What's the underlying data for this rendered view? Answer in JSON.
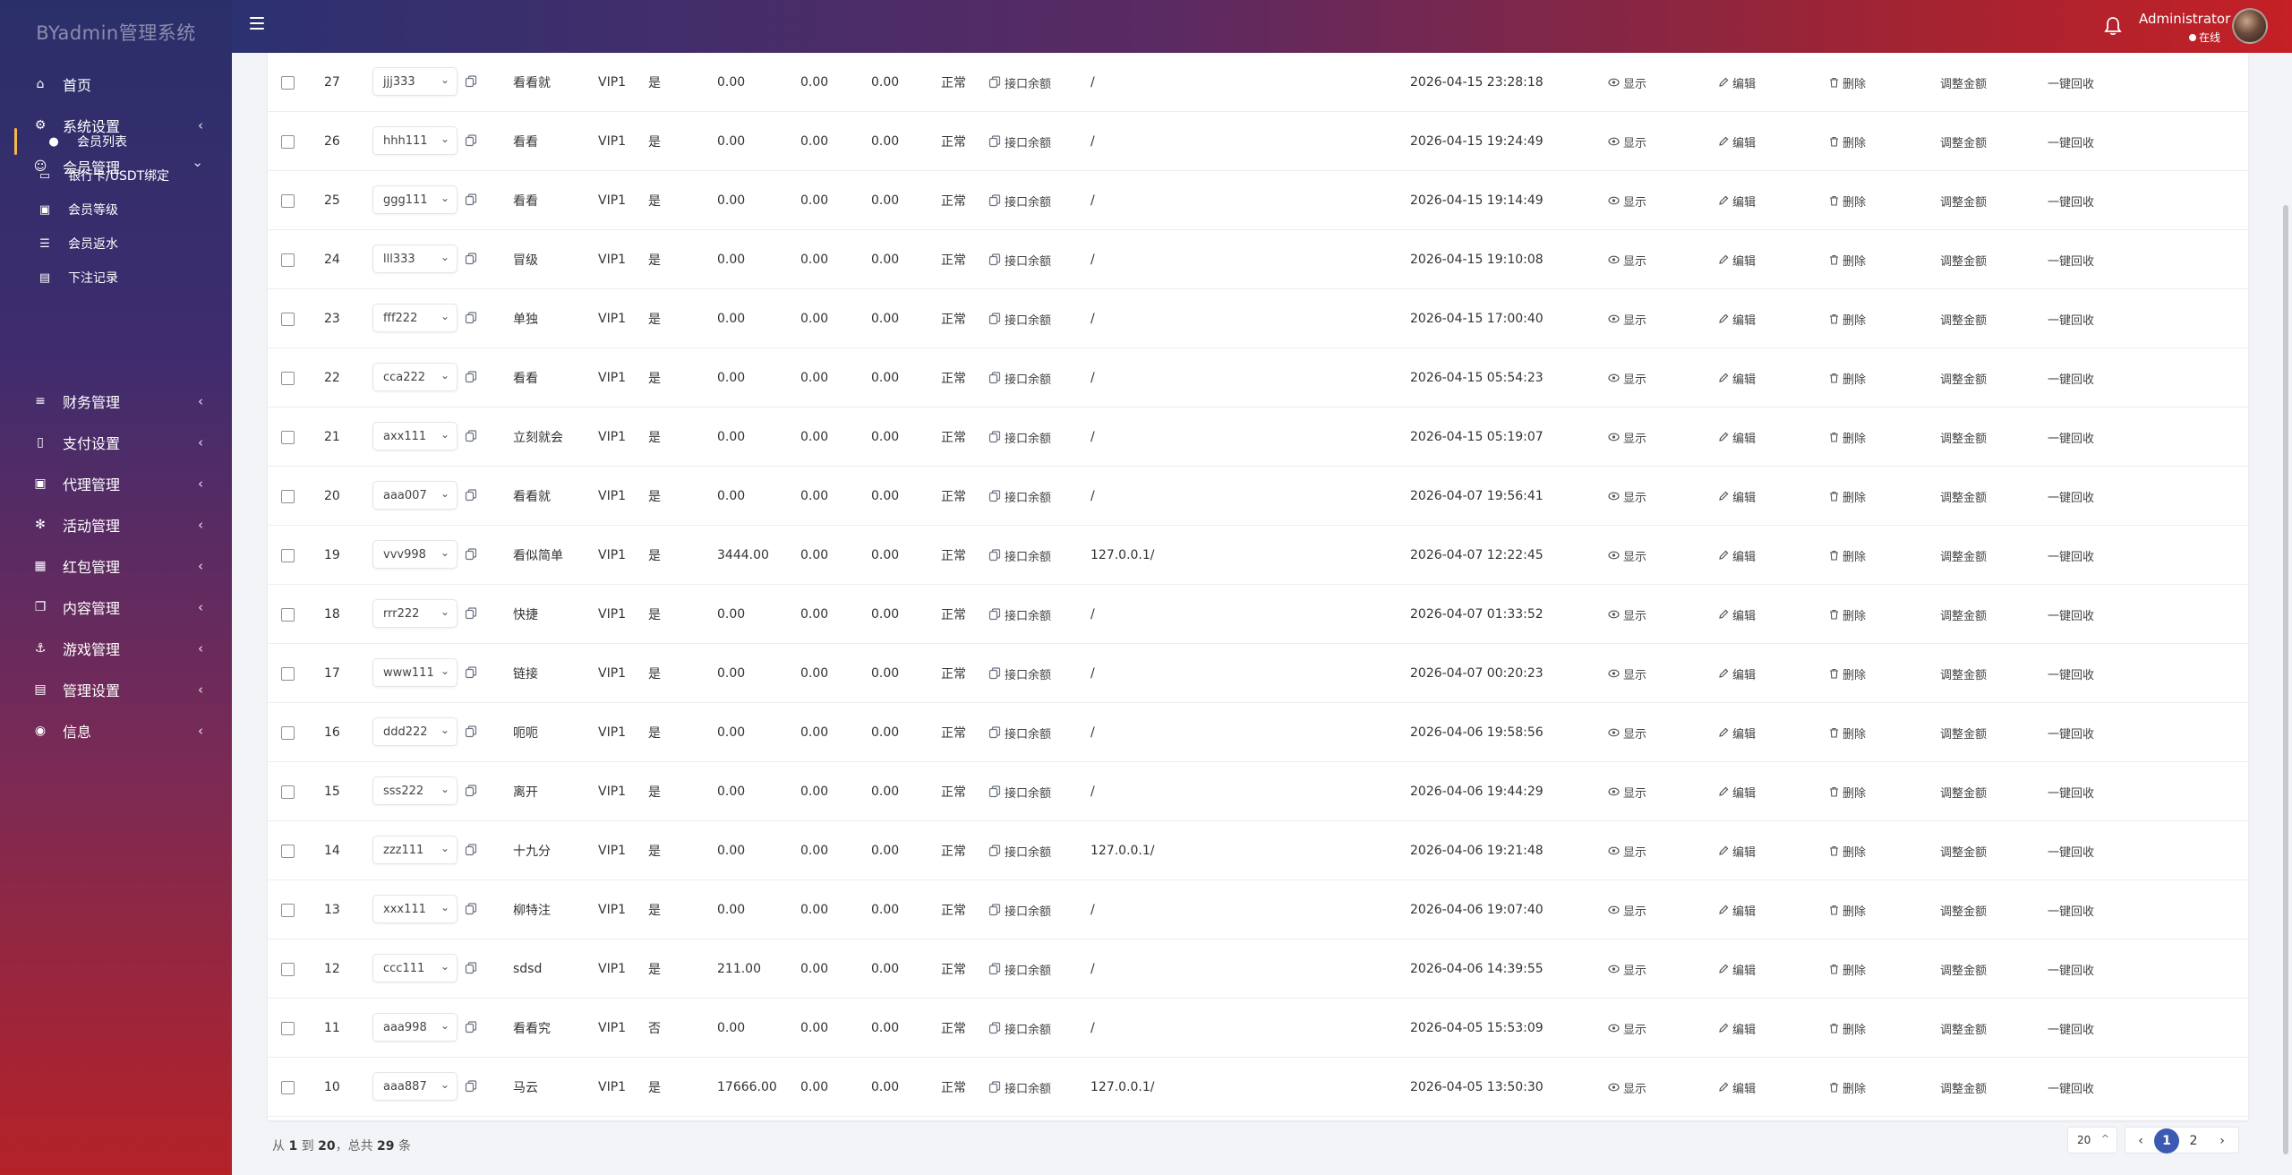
{
  "app": {
    "brand": "BYadmin管理系统"
  },
  "header": {
    "user_name": "Administrator",
    "user_status": "在线"
  },
  "sidebar": {
    "items": [
      {
        "label": "首页",
        "icon": "home-icon",
        "has_arrow": false
      },
      {
        "label": "系统设置",
        "icon": "settings-icon",
        "has_arrow": true
      },
      {
        "label": "会员管理",
        "icon": "user-icon",
        "has_arrow": true,
        "expanded": true
      },
      {
        "label": "财务管理",
        "icon": "database-icon",
        "has_arrow": true
      },
      {
        "label": "支付设置",
        "icon": "bookmark-icon",
        "has_arrow": true
      },
      {
        "label": "代理管理",
        "icon": "agent-icon",
        "has_arrow": true
      },
      {
        "label": "活动管理",
        "icon": "activity-icon",
        "has_arrow": true
      },
      {
        "label": "红包管理",
        "icon": "redpacket-icon",
        "has_arrow": true
      },
      {
        "label": "内容管理",
        "icon": "content-icon",
        "has_arrow": true
      },
      {
        "label": "游戏管理",
        "icon": "anchor-icon",
        "has_arrow": true
      },
      {
        "label": "管理设置",
        "icon": "id-card-icon",
        "has_arrow": true
      },
      {
        "label": "信息",
        "icon": "chat-icon",
        "has_arrow": true
      }
    ],
    "sub_items": [
      {
        "label": "会员列表",
        "icon": "member-icon",
        "active": true
      },
      {
        "label": "银行卡/USDT绑定",
        "icon": "card-icon",
        "active": false
      },
      {
        "label": "会员等级",
        "icon": "level-icon",
        "active": false
      },
      {
        "label": "会员返水",
        "icon": "list-icon",
        "active": false
      },
      {
        "label": "下注记录",
        "icon": "record-icon",
        "active": false
      }
    ]
  },
  "table": {
    "actions": {
      "show": "显示",
      "edit": "编辑",
      "delete": "删除",
      "adjust": "调整金额",
      "recall": "一键回收",
      "balance": "接口余额"
    },
    "rows": [
      {
        "id": "27",
        "username": "jjj333",
        "nickname": "看看就",
        "level": "VIP1",
        "flag": "是",
        "balance": "0.00",
        "c1": "0.00",
        "c2": "0.00",
        "status": "正常",
        "ip": "/",
        "time": "2026-04-15 23:28:18"
      },
      {
        "id": "26",
        "username": "hhh111",
        "nickname": "看看",
        "level": "VIP1",
        "flag": "是",
        "balance": "0.00",
        "c1": "0.00",
        "c2": "0.00",
        "status": "正常",
        "ip": "/",
        "time": "2026-04-15 19:24:49"
      },
      {
        "id": "25",
        "username": "ggg111",
        "nickname": "看看",
        "level": "VIP1",
        "flag": "是",
        "balance": "0.00",
        "c1": "0.00",
        "c2": "0.00",
        "status": "正常",
        "ip": "/",
        "time": "2026-04-15 19:14:49"
      },
      {
        "id": "24",
        "username": "lll333",
        "nickname": "冒级",
        "level": "VIP1",
        "flag": "是",
        "balance": "0.00",
        "c1": "0.00",
        "c2": "0.00",
        "status": "正常",
        "ip": "/",
        "time": "2026-04-15 19:10:08"
      },
      {
        "id": "23",
        "username": "fff222",
        "nickname": "单独",
        "level": "VIP1",
        "flag": "是",
        "balance": "0.00",
        "c1": "0.00",
        "c2": "0.00",
        "status": "正常",
        "ip": "/",
        "time": "2026-04-15 17:00:40"
      },
      {
        "id": "22",
        "username": "cca222",
        "nickname": "看看",
        "level": "VIP1",
        "flag": "是",
        "balance": "0.00",
        "c1": "0.00",
        "c2": "0.00",
        "status": "正常",
        "ip": "/",
        "time": "2026-04-15 05:54:23"
      },
      {
        "id": "21",
        "username": "axx111",
        "nickname": "立刻就会",
        "level": "VIP1",
        "flag": "是",
        "balance": "0.00",
        "c1": "0.00",
        "c2": "0.00",
        "status": "正常",
        "ip": "/",
        "time": "2026-04-15 05:19:07"
      },
      {
        "id": "20",
        "username": "aaa007",
        "nickname": "看看就",
        "level": "VIP1",
        "flag": "是",
        "balance": "0.00",
        "c1": "0.00",
        "c2": "0.00",
        "status": "正常",
        "ip": "/",
        "time": "2026-04-07 19:56:41"
      },
      {
        "id": "19",
        "username": "vvv998",
        "nickname": "看似简单",
        "level": "VIP1",
        "flag": "是",
        "balance": "3444.00",
        "c1": "0.00",
        "c2": "0.00",
        "status": "正常",
        "ip": "127.0.0.1/",
        "time": "2026-04-07 12:22:45"
      },
      {
        "id": "18",
        "username": "rrr222",
        "nickname": "快捷",
        "level": "VIP1",
        "flag": "是",
        "balance": "0.00",
        "c1": "0.00",
        "c2": "0.00",
        "status": "正常",
        "ip": "/",
        "time": "2026-04-07 01:33:52"
      },
      {
        "id": "17",
        "username": "www111",
        "nickname": "链接",
        "level": "VIP1",
        "flag": "是",
        "balance": "0.00",
        "c1": "0.00",
        "c2": "0.00",
        "status": "正常",
        "ip": "/",
        "time": "2026-04-07 00:20:23"
      },
      {
        "id": "16",
        "username": "ddd222",
        "nickname": "呃呃",
        "level": "VIP1",
        "flag": "是",
        "balance": "0.00",
        "c1": "0.00",
        "c2": "0.00",
        "status": "正常",
        "ip": "/",
        "time": "2026-04-06 19:58:56"
      },
      {
        "id": "15",
        "username": "sss222",
        "nickname": "离开",
        "level": "VIP1",
        "flag": "是",
        "balance": "0.00",
        "c1": "0.00",
        "c2": "0.00",
        "status": "正常",
        "ip": "/",
        "time": "2026-04-06 19:44:29"
      },
      {
        "id": "14",
        "username": "zzz111",
        "nickname": "十九分",
        "level": "VIP1",
        "flag": "是",
        "balance": "0.00",
        "c1": "0.00",
        "c2": "0.00",
        "status": "正常",
        "ip": "127.0.0.1/",
        "time": "2026-04-06 19:21:48"
      },
      {
        "id": "13",
        "username": "xxx111",
        "nickname": "柳特注",
        "level": "VIP1",
        "flag": "是",
        "balance": "0.00",
        "c1": "0.00",
        "c2": "0.00",
        "status": "正常",
        "ip": "/",
        "time": "2026-04-06 19:07:40"
      },
      {
        "id": "12",
        "username": "ccc111",
        "nickname": "sdsd",
        "level": "VIP1",
        "flag": "是",
        "balance": "211.00",
        "c1": "0.00",
        "c2": "0.00",
        "status": "正常",
        "ip": "/",
        "time": "2026-04-06 14:39:55"
      },
      {
        "id": "11",
        "username": "aaa998",
        "nickname": "看看究",
        "level": "VIP1",
        "flag": "否",
        "balance": "0.00",
        "c1": "0.00",
        "c2": "0.00",
        "status": "正常",
        "ip": "/",
        "time": "2026-04-05 15:53:09"
      },
      {
        "id": "10",
        "username": "aaa887",
        "nickname": "马云",
        "level": "VIP1",
        "flag": "是",
        "balance": "17666.00",
        "c1": "0.00",
        "c2": "0.00",
        "status": "正常",
        "ip": "127.0.0.1/",
        "time": "2026-04-05 13:50:30"
      }
    ]
  },
  "footer": {
    "prefix": "从",
    "from": "1",
    "to_word": "到",
    "to": "20",
    "total_word": "，总共",
    "total": "29",
    "suffix": "条"
  },
  "pagination": {
    "page_size": "20",
    "pages": [
      "1",
      "2"
    ],
    "current": "1",
    "prev": "‹",
    "next": "›"
  }
}
